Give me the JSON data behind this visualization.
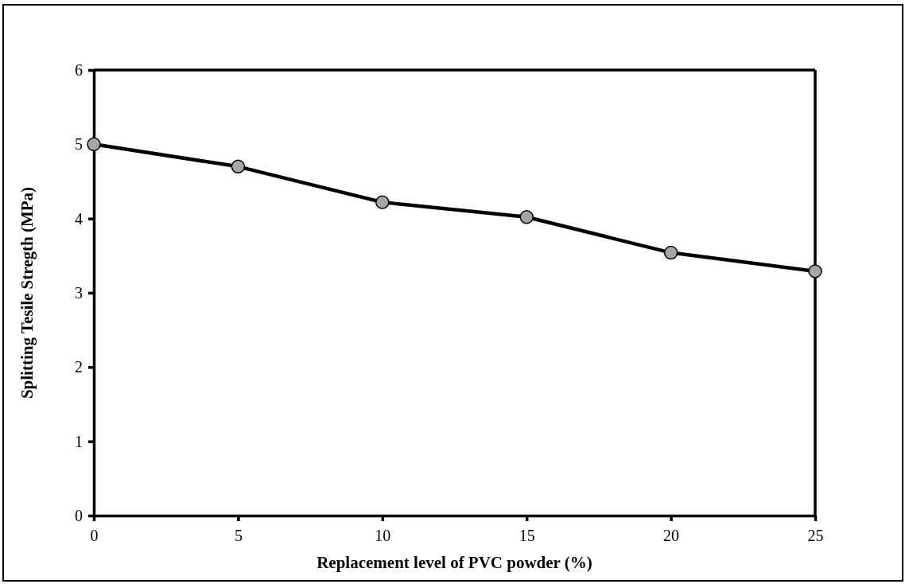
{
  "chart_data": {
    "type": "line",
    "xlabel": "Replacement level of PVC powder (%)",
    "ylabel": "Splitting Tesile Stregth (MPa)",
    "x": [
      0,
      5,
      10,
      15,
      20,
      25
    ],
    "series": [
      {
        "color": "#000000",
        "values": [
          5.0,
          4.7,
          4.22,
          4.02,
          3.54,
          3.29
        ]
      }
    ],
    "xlim": [
      0,
      25
    ],
    "xticks": [
      0,
      5,
      10,
      15,
      20,
      25
    ],
    "ylim": [
      0,
      6
    ],
    "yticks": [
      0,
      1,
      2,
      3,
      4,
      5,
      6
    ],
    "marker": "circle",
    "line_style": "solid"
  }
}
